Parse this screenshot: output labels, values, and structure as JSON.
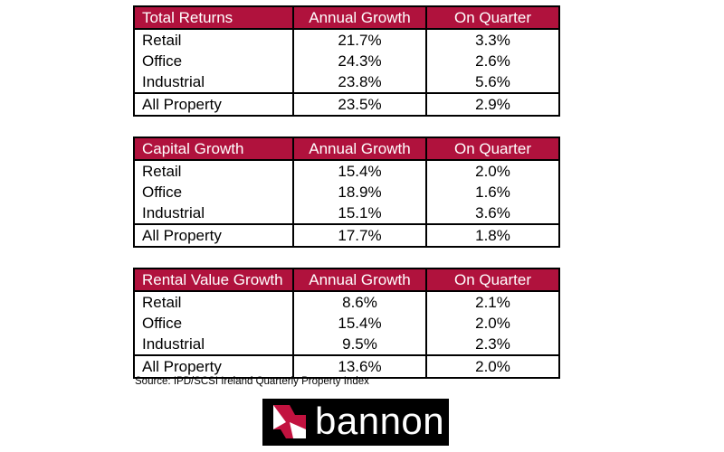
{
  "tables": [
    {
      "header": {
        "label": "Total Returns",
        "col1": "Annual Growth",
        "col2": "On Quarter"
      },
      "rows": [
        {
          "label": "Retail",
          "annual": "21.7%",
          "quarter": "3.3%"
        },
        {
          "label": "Office",
          "annual": "24.3%",
          "quarter": "2.6%"
        },
        {
          "label": "Industrial",
          "annual": "23.8%",
          "quarter": "5.6%"
        },
        {
          "label": "All Property",
          "annual": "23.5%",
          "quarter": "2.9%"
        }
      ]
    },
    {
      "header": {
        "label": "Capital Growth",
        "col1": "Annual Growth",
        "col2": "On Quarter"
      },
      "rows": [
        {
          "label": "Retail",
          "annual": "15.4%",
          "quarter": "2.0%"
        },
        {
          "label": "Office",
          "annual": "18.9%",
          "quarter": "1.6%"
        },
        {
          "label": "Industrial",
          "annual": "15.1%",
          "quarter": "3.6%"
        },
        {
          "label": "All Property",
          "annual": "17.7%",
          "quarter": "1.8%"
        }
      ]
    },
    {
      "header": {
        "label": "Rental Value Growth",
        "col1": "Annual Growth",
        "col2": "On Quarter"
      },
      "rows": [
        {
          "label": "Retail",
          "annual": "8.6%",
          "quarter": "2.1%"
        },
        {
          "label": "Office",
          "annual": "15.4%",
          "quarter": "2.0%"
        },
        {
          "label": "Industrial",
          "annual": "9.5%",
          "quarter": "2.3%"
        },
        {
          "label": "All Property",
          "annual": "13.6%",
          "quarter": "2.0%"
        }
      ]
    }
  ],
  "source": "Source: IPD/SCSI Ireland Quarterly Property Index",
  "logo": {
    "text": "bannon",
    "icon": "bannon-logo-mark-icon"
  },
  "colors": {
    "header_bg": "#b0123d",
    "header_text": "#ffffff",
    "border": "#000000",
    "logo_bg": "#000000"
  }
}
